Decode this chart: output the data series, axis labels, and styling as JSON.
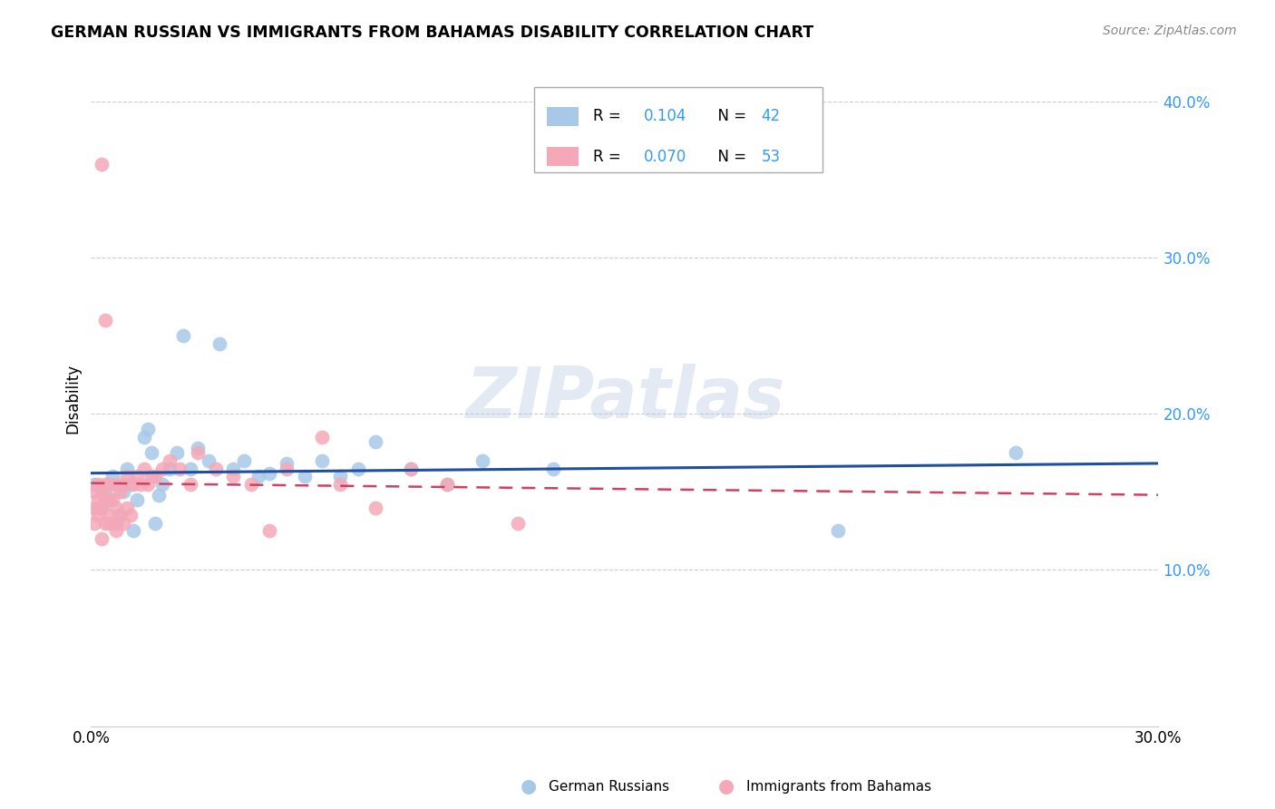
{
  "title": "GERMAN RUSSIAN VS IMMIGRANTS FROM BAHAMAS DISABILITY CORRELATION CHART",
  "source": "Source: ZipAtlas.com",
  "ylabel": "Disability",
  "xlim": [
    0.0,
    0.3
  ],
  "ylim": [
    0.0,
    0.42
  ],
  "yticks": [
    0.1,
    0.2,
    0.3,
    0.4
  ],
  "ytick_labels": [
    "10.0%",
    "20.0%",
    "30.0%",
    "40.0%"
  ],
  "xtick_vals": [
    0.0,
    0.05,
    0.1,
    0.15,
    0.2,
    0.25,
    0.3
  ],
  "xtick_labels": [
    "0.0%",
    "",
    "",
    "",
    "",
    "",
    "30.0%"
  ],
  "legend_r_blue": "0.104",
  "legend_n_blue": "42",
  "legend_r_pink": "0.070",
  "legend_n_pink": "53",
  "blue_color": "#A8C8E8",
  "pink_color": "#F4A8B8",
  "blue_line_color": "#1E4FA0",
  "pink_line_color": "#D04060",
  "watermark": "ZIPatlas",
  "blue_scatter_x": [
    0.001,
    0.002,
    0.003,
    0.004,
    0.005,
    0.006,
    0.007,
    0.008,
    0.009,
    0.01,
    0.011,
    0.012,
    0.013,
    0.015,
    0.016,
    0.017,
    0.018,
    0.019,
    0.02,
    0.022,
    0.024,
    0.026,
    0.028,
    0.03,
    0.033,
    0.036,
    0.04,
    0.043,
    0.047,
    0.05,
    0.055,
    0.06,
    0.065,
    0.07,
    0.075,
    0.08,
    0.09,
    0.1,
    0.11,
    0.13,
    0.21,
    0.26
  ],
  "blue_scatter_y": [
    0.155,
    0.14,
    0.14,
    0.15,
    0.145,
    0.16,
    0.13,
    0.135,
    0.15,
    0.165,
    0.155,
    0.125,
    0.145,
    0.185,
    0.19,
    0.175,
    0.13,
    0.148,
    0.155,
    0.165,
    0.175,
    0.25,
    0.165,
    0.178,
    0.17,
    0.245,
    0.165,
    0.17,
    0.16,
    0.162,
    0.168,
    0.16,
    0.17,
    0.16,
    0.165,
    0.182,
    0.165,
    0.155,
    0.17,
    0.165,
    0.125,
    0.175
  ],
  "pink_scatter_x": [
    0.001,
    0.001,
    0.001,
    0.002,
    0.002,
    0.002,
    0.003,
    0.003,
    0.003,
    0.004,
    0.004,
    0.004,
    0.005,
    0.005,
    0.005,
    0.005,
    0.006,
    0.006,
    0.007,
    0.007,
    0.007,
    0.008,
    0.008,
    0.009,
    0.009,
    0.01,
    0.01,
    0.011,
    0.012,
    0.013,
    0.014,
    0.015,
    0.016,
    0.017,
    0.018,
    0.02,
    0.022,
    0.025,
    0.028,
    0.03,
    0.035,
    0.04,
    0.045,
    0.05,
    0.055,
    0.065,
    0.07,
    0.08,
    0.09,
    0.1,
    0.003,
    0.004,
    0.12
  ],
  "pink_scatter_y": [
    0.14,
    0.15,
    0.13,
    0.145,
    0.135,
    0.155,
    0.12,
    0.14,
    0.15,
    0.13,
    0.145,
    0.155,
    0.135,
    0.145,
    0.13,
    0.155,
    0.13,
    0.145,
    0.125,
    0.14,
    0.155,
    0.135,
    0.15,
    0.13,
    0.155,
    0.14,
    0.16,
    0.135,
    0.155,
    0.16,
    0.155,
    0.165,
    0.155,
    0.16,
    0.16,
    0.165,
    0.17,
    0.165,
    0.155,
    0.175,
    0.165,
    0.16,
    0.155,
    0.125,
    0.165,
    0.185,
    0.155,
    0.14,
    0.165,
    0.155,
    0.36,
    0.26,
    0.13
  ],
  "grid_color": "#CCCCCC",
  "background_color": "#FFFFFF"
}
